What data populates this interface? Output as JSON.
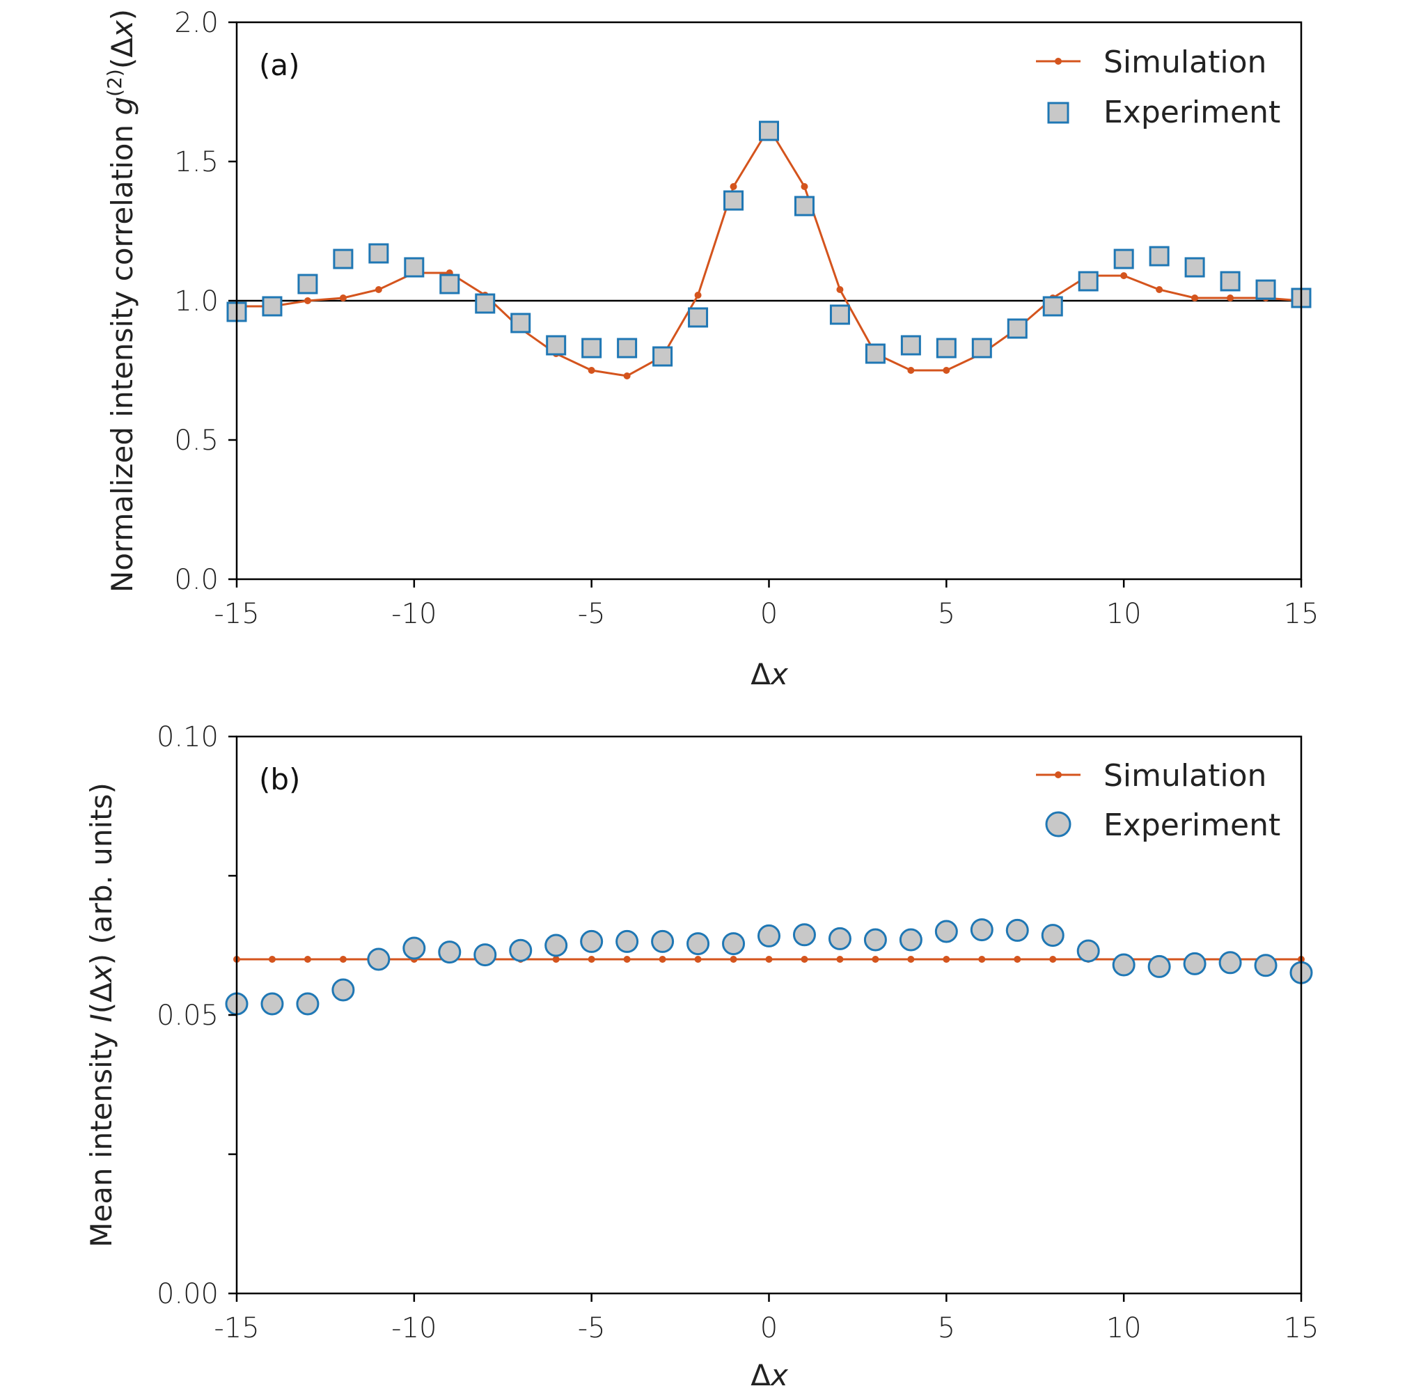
{
  "colors": {
    "simulation": "#d4541d",
    "experiment_edge": "#1f77b4",
    "experiment_fill": "#c8c8c8",
    "axis": "#000000"
  },
  "chart_data": [
    {
      "type": "line",
      "panel_label": "(a)",
      "xlabel": "Δx",
      "ylabel": "Normalized intensity correlation g(2)(Δx)",
      "ylabel_parts": {
        "prefix": "Normalized intensity correlation ",
        "g": "g",
        "sup": "(2)",
        "open": "(",
        "delta": "Δ",
        "x": "x",
        "close": ")"
      },
      "xlim": [
        -15,
        15
      ],
      "ylim": [
        0.0,
        2.0
      ],
      "xticks": [
        -15,
        -10,
        -5,
        0,
        5,
        10,
        15
      ],
      "xtick_labels": [
        "-15",
        "-10",
        "-5",
        "0",
        "5",
        "10",
        "15"
      ],
      "yticks": [
        0.0,
        0.5,
        1.0,
        1.5,
        2.0
      ],
      "ytick_labels": [
        "0.0",
        "0.5",
        "1.0",
        "1.5",
        "2.0"
      ],
      "reference_line_y": 1.0,
      "legend": [
        "Simulation",
        "Experiment"
      ],
      "legend_position": "top-right",
      "x": [
        -15,
        -14,
        -13,
        -12,
        -11,
        -10,
        -9,
        -8,
        -7,
        -6,
        -5,
        -4,
        -3,
        -2,
        -1,
        0,
        1,
        2,
        3,
        4,
        5,
        6,
        7,
        8,
        9,
        10,
        11,
        12,
        13,
        14,
        15
      ],
      "series": [
        {
          "name": "Simulation",
          "style": "line-dot",
          "values": [
            0.98,
            0.98,
            1.0,
            1.01,
            1.04,
            1.1,
            1.1,
            1.02,
            0.9,
            0.81,
            0.75,
            0.73,
            0.8,
            1.02,
            1.41,
            1.62,
            1.41,
            1.04,
            0.81,
            0.75,
            0.75,
            0.81,
            0.9,
            1.01,
            1.09,
            1.09,
            1.04,
            1.01,
            1.01,
            1.01,
            1.0
          ]
        },
        {
          "name": "Experiment",
          "style": "square",
          "values": [
            0.96,
            0.98,
            1.06,
            1.15,
            1.17,
            1.12,
            1.06,
            0.99,
            0.92,
            0.84,
            0.83,
            0.83,
            0.8,
            0.94,
            1.36,
            1.61,
            1.34,
            0.95,
            0.81,
            0.84,
            0.83,
            0.83,
            0.9,
            0.98,
            1.07,
            1.15,
            1.16,
            1.12,
            1.07,
            1.04,
            1.01
          ]
        }
      ]
    },
    {
      "type": "scatter",
      "panel_label": "(b)",
      "xlabel": "Δx",
      "ylabel": "Mean intensity I(Δx) (arb. units)",
      "ylabel_parts": {
        "prefix": "Mean intensity ",
        "I": "I",
        "open": "(",
        "delta": "Δ",
        "x": "x",
        "close": ")",
        "suffix": " (arb. units)"
      },
      "xlim": [
        -15,
        15
      ],
      "ylim": [
        0.0,
        0.1
      ],
      "xticks": [
        -15,
        -10,
        -5,
        0,
        5,
        10,
        15
      ],
      "xtick_labels": [
        "-15",
        "-10",
        "-5",
        "0",
        "5",
        "10",
        "15"
      ],
      "yticks": [
        0.0,
        0.025,
        0.05,
        0.075,
        0.1
      ],
      "ytick_labels": [
        "0.00",
        "",
        "0.05",
        "",
        "0.10"
      ],
      "legend": [
        "Simulation",
        "Experiment"
      ],
      "legend_position": "top-right",
      "x": [
        -15,
        -14,
        -13,
        -12,
        -11,
        -10,
        -9,
        -8,
        -7,
        -6,
        -5,
        -4,
        -3,
        -2,
        -1,
        0,
        1,
        2,
        3,
        4,
        5,
        6,
        7,
        8,
        9,
        10,
        11,
        12,
        13,
        14,
        15
      ],
      "series": [
        {
          "name": "Simulation",
          "style": "line-dot",
          "values": [
            0.06,
            0.06,
            0.06,
            0.06,
            0.06,
            0.06,
            0.06,
            0.06,
            0.06,
            0.06,
            0.06,
            0.06,
            0.06,
            0.06,
            0.06,
            0.06,
            0.06,
            0.06,
            0.06,
            0.06,
            0.06,
            0.06,
            0.06,
            0.06,
            0.06,
            0.06,
            0.06,
            0.06,
            0.06,
            0.06,
            0.06
          ]
        },
        {
          "name": "Experiment",
          "style": "circle",
          "values": [
            0.052,
            0.052,
            0.052,
            0.0545,
            0.06,
            0.062,
            0.0613,
            0.0608,
            0.0616,
            0.0625,
            0.0632,
            0.0632,
            0.0632,
            0.0628,
            0.0628,
            0.0642,
            0.0644,
            0.0637,
            0.0635,
            0.0635,
            0.065,
            0.0653,
            0.0652,
            0.0643,
            0.0615,
            0.059,
            0.0587,
            0.0592,
            0.0594,
            0.0589,
            0.0576
          ]
        }
      ]
    }
  ]
}
